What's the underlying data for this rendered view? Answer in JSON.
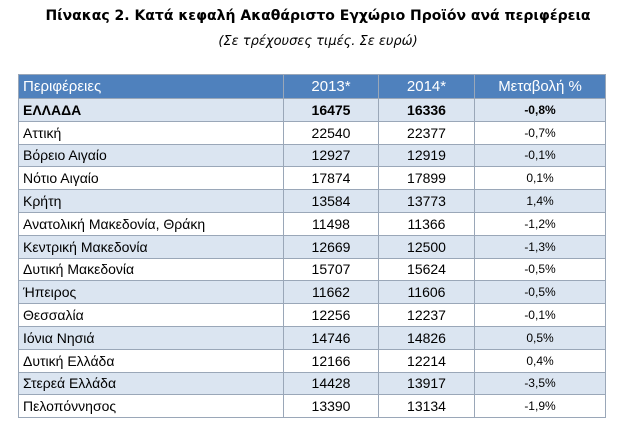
{
  "header": {
    "title": "Πίνακας 2. Κατά κεφαλή Ακαθάριστο Εγχώριο Προϊόν ανά περιφέρεια",
    "subtitle": "(Σε τρέχουσες τιμές. Σε ευρώ)"
  },
  "table": {
    "columns": [
      "Περιφέρειες",
      "2013*",
      "2014*",
      "Μεταβολή %"
    ],
    "rows": [
      [
        "ΕΛΛΑΔΑ",
        16475,
        16336,
        "-0,8%"
      ],
      [
        "Αττική",
        22540,
        22377,
        "-0,7%"
      ],
      [
        "Βόρειο Αιγαίο",
        12927,
        12919,
        "-0,1%"
      ],
      [
        "Νότιο Αιγαίο",
        17874,
        17899,
        "0,1%"
      ],
      [
        "Κρήτη",
        13584,
        13773,
        "1,4%"
      ],
      [
        "Ανατολική Μακεδονία, Θράκη",
        11498,
        11366,
        "-1,2%"
      ],
      [
        "Κεντρική Μακεδονία",
        12669,
        12500,
        "-1,3%"
      ],
      [
        "Δυτική Μακεδονία",
        15707,
        15624,
        "-0,5%"
      ],
      [
        "Ήπειρος",
        11662,
        11606,
        "-0,5%"
      ],
      [
        "Θεσσαλία",
        12256,
        12237,
        "-0,1%"
      ],
      [
        "Ιόνια Νησιά",
        14746,
        14826,
        "0,5%"
      ],
      [
        "Δυτική Ελλάδα",
        12166,
        12214,
        "0,4%"
      ],
      [
        "Στερεά Ελλάδα",
        14428,
        13917,
        "-3,5%"
      ],
      [
        "Πελοπόννησος",
        13390,
        13134,
        "-1,9%"
      ]
    ]
  }
}
